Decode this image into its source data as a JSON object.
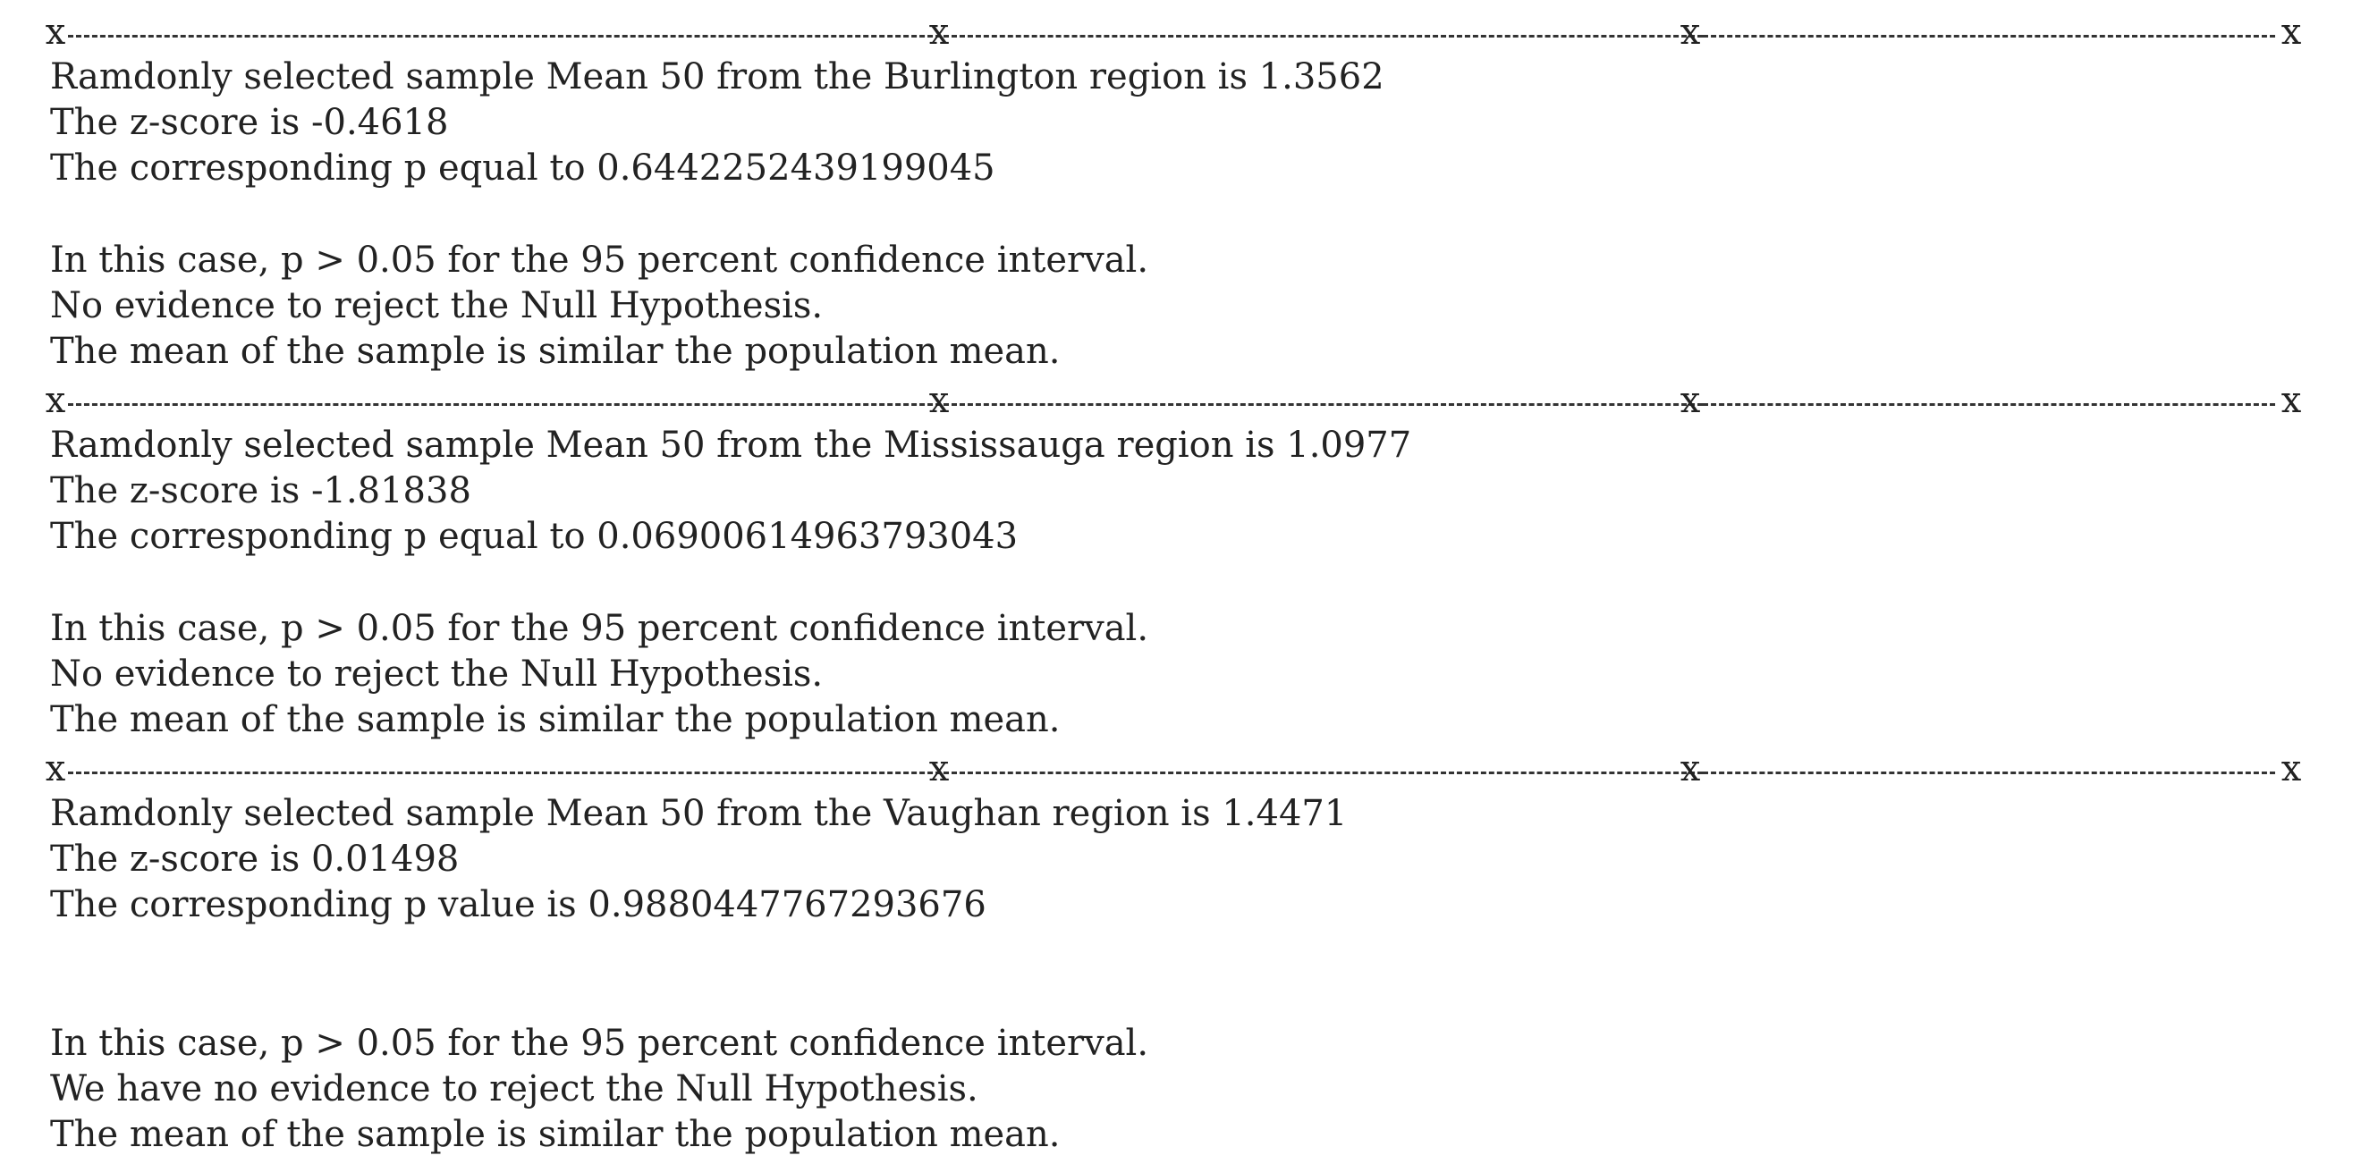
{
  "separator": {
    "marker": "x"
  },
  "sections": [
    {
      "sample_line": "Ramdonly selected sample Mean 50 from the Burlington region is 1.3562",
      "z_line": "The z-score is -0.4618",
      "p_line": "The corresponding p equal to 0.6442252439199045",
      "conclusion": [
        "In this case, p > 0.05 for the 95 percent confidence interval.",
        "No evidence to reject the Null Hypothesis.",
        "The mean of the sample is similar the population mean."
      ]
    },
    {
      "sample_line": "Ramdonly selected sample Mean 50 from the Mississauga region is 1.0977",
      "z_line": "The z-score is -1.81838",
      "p_line": "The corresponding p equal to 0.06900614963793043",
      "conclusion": [
        "In this case, p > 0.05 for the 95 percent confidence interval.",
        "No evidence to reject the Null Hypothesis.",
        "The mean of the sample is similar the population mean."
      ]
    },
    {
      "sample_line": "Ramdonly selected sample Mean 50 from the Vaughan region is 1.4471",
      "z_line": "The z-score is 0.01498",
      "p_line": "The corresponding p value is 0.9880447767293676",
      "conclusion": [
        "In this case, p > 0.05 for the 95 percent confidence interval.",
        "We have no evidence to reject the Null Hypothesis.",
        "The mean of the sample is similar the population mean."
      ]
    }
  ]
}
